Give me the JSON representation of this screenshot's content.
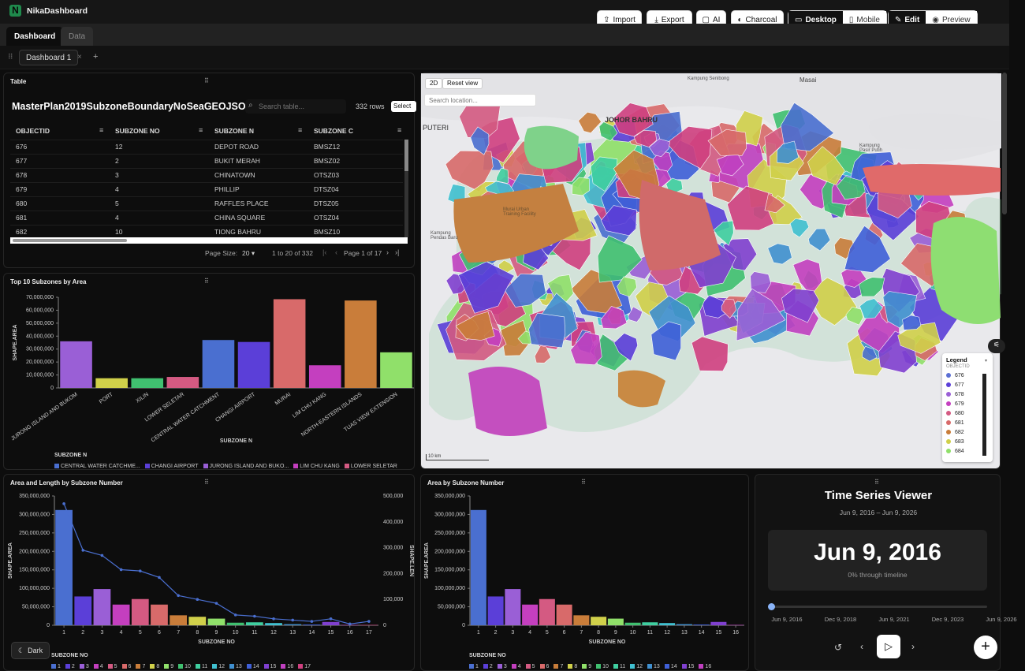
{
  "app": {
    "name": "NikaDashboard",
    "logo": "N"
  },
  "toolbar": {
    "import": "Import",
    "export": "Export",
    "ai": "AI",
    "theme": "Charcoal",
    "desktop": "Desktop",
    "mobile": "Mobile",
    "edit": "Edit",
    "preview": "Preview"
  },
  "tabs": {
    "dashboard": "Dashboard",
    "data": "Data"
  },
  "dash": {
    "tab": "Dashboard 1",
    "close": "×",
    "add": "+"
  },
  "table": {
    "panel_title": "Table",
    "title": "MasterPlan2019SubzoneBoundaryNoSeaGEOJSON",
    "search_placeholder": "Search table...",
    "rows": "332 rows",
    "select": "Select",
    "columns": [
      "OBJECTID",
      "SUBZONE NO",
      "SUBZONE N",
      "SUBZONE C"
    ],
    "data": [
      [
        "676",
        "12",
        "DEPOT ROAD",
        "BMSZ12"
      ],
      [
        "677",
        "2",
        "BUKIT MERAH",
        "BMSZ02"
      ],
      [
        "678",
        "3",
        "CHINATOWN",
        "OTSZ03"
      ],
      [
        "679",
        "4",
        "PHILLIP",
        "DTSZ04"
      ],
      [
        "680",
        "5",
        "RAFFLES PLACE",
        "DTSZ05"
      ],
      [
        "681",
        "4",
        "CHINA SQUARE",
        "OTSZ04"
      ],
      [
        "682",
        "10",
        "TIONG BAHRU",
        "BMSZ10"
      ]
    ],
    "page_size_label": "Page Size:",
    "page_size": "20",
    "range": "1 to 20 of 332",
    "page": "Page 1 of 17"
  },
  "map": {
    "mode": "2D",
    "reset": "Reset view",
    "search_placeholder": "Search location...",
    "labels": [
      "JOHOR BAHRU",
      "PUTERI",
      "Masai",
      "Kampung Senibong",
      "Kampung Pasir Putih",
      "Kampung Pendas Baru",
      "Murai Urban Training Facility"
    ],
    "scale": "10 km",
    "legend_title": "Legend",
    "legend_sub": "OBJECTID",
    "legend": [
      {
        "id": "676",
        "color": "#5b6fd4"
      },
      {
        "id": "677",
        "color": "#5b3fd8"
      },
      {
        "id": "678",
        "color": "#9a5fd6"
      },
      {
        "id": "679",
        "color": "#c43fbf"
      },
      {
        "id": "680",
        "color": "#d45a82"
      },
      {
        "id": "681",
        "color": "#d86a6a"
      },
      {
        "id": "682",
        "color": "#c97d3a"
      },
      {
        "id": "683",
        "color": "#d0d04a"
      },
      {
        "id": "684",
        "color": "#90e06a"
      }
    ]
  },
  "bar_top": {
    "panel_title": "Top 10 Subzones by Area",
    "legend_title": "SUBZONE N",
    "legend": [
      {
        "name": "CENTRAL WATER CATCHME...",
        "color": "#4a6fd0"
      },
      {
        "name": "CHANGI AIRPORT",
        "color": "#5b3fd8"
      },
      {
        "name": "JURONG ISLAND AND BUKO...",
        "color": "#9a5fd6"
      },
      {
        "name": "LIM CHU KANG",
        "color": "#c43fbf"
      },
      {
        "name": "LOWER SELETAR",
        "color": "#d45a82"
      }
    ]
  },
  "combo": {
    "panel_title": "Area and Length by Subzone Number",
    "legend_title": "SUBZONE NO",
    "legend": [
      "1",
      "2",
      "3",
      "4",
      "5",
      "6",
      "7",
      "8",
      "9",
      "10",
      "11",
      "12",
      "13",
      "14",
      "15",
      "16",
      "17"
    ]
  },
  "area": {
    "panel_title": "Area by Subzone Number",
    "legend_title": "SUBZONE NO",
    "legend": [
      "1",
      "2",
      "3",
      "4",
      "5",
      "6",
      "7",
      "8",
      "9",
      "10",
      "11",
      "12",
      "13",
      "14",
      "15",
      "16"
    ]
  },
  "timeseries": {
    "title": "Time Series Viewer",
    "range": "Jun 9, 2016 – Jun 9, 2026",
    "date": "Jun 9, 2016",
    "progress_text": "0% through timeline",
    "progress": 0,
    "ticks": [
      "Jun 9, 2016",
      "Dec 9, 2018",
      "Jun 9, 2021",
      "Dec 9, 2023",
      "Jun 9, 2026"
    ]
  },
  "dark_toggle": "Dark",
  "palette": [
    "#4a6fd0",
    "#5b3fd8",
    "#9a5fd6",
    "#c43fbf",
    "#d45a82",
    "#d86a6a",
    "#c97d3a",
    "#d0d04a",
    "#90e06a",
    "#40c070",
    "#3fcfa0",
    "#40c0d0",
    "#4090d0",
    "#3f60d8",
    "#8040d0",
    "#c040c0",
    "#d04080"
  ],
  "chart_data": [
    {
      "type": "bar",
      "title": "Top 10 Subzones by Area",
      "xlabel": "SUBZONE N",
      "ylabel": "SHAPE.AREA",
      "ylim": [
        0,
        70000000
      ],
      "categories": [
        "JURONG ISLAND AND BUKOM",
        "PORT",
        "XILIN",
        "LOWER SELETAR",
        "CENTRAL WATER CATCHMENT",
        "CHANGI AIRPORT",
        "MURAI",
        "LIM CHU KANG",
        "NORTH-EASTERN ISLANDS",
        "TUAS VIEW EXTENSION"
      ],
      "values": [
        36000000,
        7500000,
        7500000,
        8500000,
        37000000,
        35500000,
        68500000,
        17500000,
        67500000,
        27500000
      ],
      "colors": [
        "#9a5fd6",
        "#d0d04a",
        "#40c070",
        "#d45a82",
        "#4a6fd0",
        "#5b3fd8",
        "#d86a6a",
        "#c43fbf",
        "#c97d3a",
        "#90e06a"
      ],
      "yticks": [
        "0",
        "10,000,000",
        "20,000,000",
        "30,000,000",
        "40,000,000",
        "50,000,000",
        "60,000,000",
        "70,000,000"
      ]
    },
    {
      "type": "bar",
      "title": "Area and Length by Subzone Number",
      "xlabel": "SUBZONE NO",
      "ylabel": "SHAPE.AREA",
      "y2label": "SHAPE.LEN",
      "ylim": [
        0,
        350000000
      ],
      "y2lim": [
        0,
        500000
      ],
      "categories": [
        "1",
        "2",
        "3",
        "4",
        "5",
        "6",
        "7",
        "8",
        "9",
        "10",
        "11",
        "12",
        "13",
        "14",
        "15",
        "16",
        "17"
      ],
      "values": [
        312000000,
        78000000,
        98000000,
        56000000,
        71000000,
        56000000,
        27000000,
        23000000,
        18000000,
        7000000,
        8000000,
        6000000,
        3000000,
        2000000,
        9000000,
        1000000,
        1000000
      ],
      "line": [
        470000,
        290000,
        270000,
        215000,
        210000,
        185000,
        115000,
        100000,
        85000,
        40000,
        35000,
        25000,
        20000,
        15000,
        25000,
        5000,
        15000
      ],
      "yticks": [
        "0",
        "50,000,000",
        "100,000,000",
        "150,000,000",
        "200,000,000",
        "250,000,000",
        "300,000,000",
        "350,000,000"
      ],
      "y2ticks": [
        "0",
        "100,000",
        "200,000",
        "300,000",
        "400,000",
        "500,000"
      ]
    },
    {
      "type": "bar",
      "title": "Area by Subzone Number",
      "xlabel": "SUBZONE NO",
      "ylabel": "SHAPE.AREA",
      "ylim": [
        0,
        350000000
      ],
      "categories": [
        "1",
        "2",
        "3",
        "4",
        "5",
        "6",
        "7",
        "8",
        "9",
        "10",
        "11",
        "12",
        "13",
        "14",
        "15",
        "16"
      ],
      "values": [
        312000000,
        78000000,
        98000000,
        56000000,
        71000000,
        56000000,
        27000000,
        23000000,
        18000000,
        7000000,
        8000000,
        6000000,
        3000000,
        2000000,
        9000000,
        1000000
      ],
      "yticks": [
        "0",
        "50,000,000",
        "100,000,000",
        "150,000,000",
        "200,000,000",
        "250,000,000",
        "300,000,000",
        "350,000,000"
      ]
    }
  ]
}
